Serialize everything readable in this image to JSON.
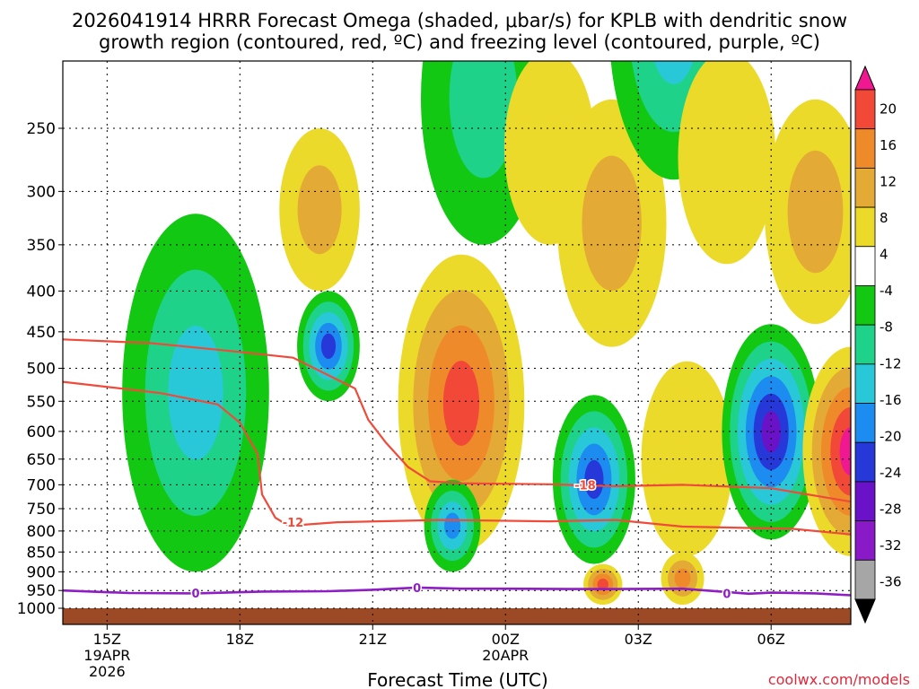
{
  "header": {
    "title_line1": "2026041914 HRRR Forecast Omega (shaded, μbar/s) for KPLB with dendritic snow",
    "title_line2": "growth region (contoured, red, ºC) and freezing level (contoured, purple, ºC)"
  },
  "footer": {
    "xlabel": "Forecast Time (UTC)",
    "credit": "coolwx.com/models"
  },
  "colors": {
    "freezing_line": "#8e1ec4",
    "dgz_line": "#f04a3a",
    "ground": "#9c4a25"
  },
  "chart_data": {
    "type": "heatmap",
    "title": "2026041914 HRRR Forecast Omega (shaded, μbar/s) for KPLB with dendritic snow growth region (contoured, red, ºC) and freezing level (contoured, purple, ºC)",
    "xlabel": "Forecast Time (UTC)",
    "ylabel": "",
    "x_ticks": [
      {
        "label": "15Z",
        "sub": [
          "19APR",
          "2026"
        ],
        "hour": 15
      },
      {
        "label": "18Z",
        "sub": [],
        "hour": 18
      },
      {
        "label": "21Z",
        "sub": [],
        "hour": 21
      },
      {
        "label": "00Z",
        "sub": [
          "20APR"
        ],
        "hour": 24
      },
      {
        "label": "03Z",
        "sub": [],
        "hour": 27
      },
      {
        "label": "06Z",
        "sub": [],
        "hour": 30
      }
    ],
    "xlim": [
      "2026-04-19 14Z",
      "2026-04-20 08Z"
    ],
    "y_ticks": [
      250,
      300,
      350,
      400,
      450,
      500,
      550,
      600,
      650,
      700,
      750,
      800,
      850,
      900,
      950,
      1000
    ],
    "y_unit": "hPa",
    "ylim": [
      1000,
      200
    ],
    "grid": true,
    "colorbar": {
      "labels": [
        "20",
        "16",
        "12",
        "8",
        "4",
        "-4",
        "-8",
        "-12",
        "-16",
        "-20",
        "-24",
        "-28",
        "-32",
        "-36"
      ],
      "bins": [
        {
          "range": "<-36",
          "color": "#000000"
        },
        {
          "range": "-36 to -32",
          "color": "#a6a6a6"
        },
        {
          "range": "-32 to -28",
          "color": "#8a19c8"
        },
        {
          "range": "-28 to -24",
          "color": "#6a12c8"
        },
        {
          "range": "-24 to -20",
          "color": "#2638d8"
        },
        {
          "range": "-20 to -16",
          "color": "#1d8cf0"
        },
        {
          "range": "-16 to -12",
          "color": "#28c8d8"
        },
        {
          "range": "-12 to -8",
          "color": "#1fd28a"
        },
        {
          "range": "-8 to -4",
          "color": "#12c812"
        },
        {
          "range": "-4 to 4",
          "color": "#ffffff"
        },
        {
          "range": "4 to 8",
          "color": "#ecda2a"
        },
        {
          "range": "8 to 12",
          "color": "#e4aa36"
        },
        {
          "range": "12 to 16",
          "color": "#ee8a2a"
        },
        {
          "range": "16 to 20",
          "color": "#f24838"
        },
        {
          "range": ">20",
          "color": "#f01890"
        }
      ]
    },
    "omega_features": [
      {
        "time_h": 17.0,
        "p_top": 320,
        "p_bot": 900,
        "peak": -14
      },
      {
        "time_h": 20.0,
        "p_top": 400,
        "p_bot": 550,
        "peak": -24
      },
      {
        "time_h": 19.8,
        "p_top": 250,
        "p_bot": 400,
        "peak": 10
      },
      {
        "time_h": 23.0,
        "p_top": 360,
        "p_bot": 850,
        "peak": 18
      },
      {
        "time_h": 23.5,
        "p_top": 150,
        "p_bot": 350,
        "peak": -12
      },
      {
        "time_h": 22.8,
        "p_top": 690,
        "p_bot": 900,
        "peak": -18
      },
      {
        "time_h": 25.0,
        "p_top": 200,
        "p_bot": 350,
        "peak": 8
      },
      {
        "time_h": 26.4,
        "p_top": 230,
        "p_bot": 470,
        "peak": 12
      },
      {
        "time_h": 27.8,
        "p_top": 120,
        "p_bot": 290,
        "peak": -14
      },
      {
        "time_h": 26.0,
        "p_top": 540,
        "p_bot": 880,
        "peak": -22
      },
      {
        "time_h": 26.2,
        "p_top": 880,
        "p_bot": 990,
        "peak": 18
      },
      {
        "time_h": 28.1,
        "p_top": 490,
        "p_bot": 860,
        "peak": 6
      },
      {
        "time_h": 28.0,
        "p_top": 850,
        "p_bot": 990,
        "peak": 16
      },
      {
        "time_h": 29.0,
        "p_top": 200,
        "p_bot": 370,
        "peak": 8
      },
      {
        "time_h": 31.0,
        "p_top": 230,
        "p_bot": 440,
        "peak": 10
      },
      {
        "time_h": 30.0,
        "p_top": 440,
        "p_bot": 820,
        "peak": -28
      },
      {
        "time_h": 31.8,
        "p_top": 470,
        "p_bot": 860,
        "peak": 24
      }
    ],
    "series": [
      {
        "name": "-12",
        "kind": "dgz_contour",
        "color": "#f04a3a",
        "points": [
          [
            14.0,
            460
          ],
          [
            16.0,
            465
          ],
          [
            18.0,
            477
          ],
          [
            19.2,
            485
          ],
          [
            20.6,
            530
          ],
          [
            20.9,
            580
          ],
          [
            21.3,
            620
          ],
          [
            21.8,
            665
          ],
          [
            22.3,
            693
          ],
          [
            23.0,
            697
          ],
          [
            25.0,
            699
          ],
          [
            26.5,
            703
          ],
          [
            28.0,
            700
          ],
          [
            30.0,
            707
          ],
          [
            31.8,
            735
          ]
        ]
      },
      {
        "name": "-12",
        "kind": "dgz_contour",
        "color": "#f04a3a",
        "points": [
          [
            14.0,
            520
          ],
          [
            16.2,
            537
          ],
          [
            17.5,
            555
          ],
          [
            18.0,
            585
          ],
          [
            18.4,
            640
          ],
          [
            18.5,
            720
          ],
          [
            18.8,
            770
          ],
          [
            19.1,
            788
          ],
          [
            20.2,
            780
          ],
          [
            22.5,
            775
          ],
          [
            25.0,
            778
          ],
          [
            26.5,
            775
          ],
          [
            28.0,
            790
          ],
          [
            30.5,
            795
          ],
          [
            31.8,
            808
          ]
        ]
      },
      {
        "name": "-18",
        "kind": "dgz_label",
        "color": "#f04a3a",
        "points": [
          [
            25.8,
            700
          ]
        ]
      },
      {
        "name": "0",
        "kind": "freezing_level",
        "color": "#8e1ec4",
        "points": [
          [
            14.0,
            950
          ],
          [
            15.5,
            957
          ],
          [
            17.0,
            958
          ],
          [
            18.5,
            953
          ],
          [
            20.0,
            952
          ],
          [
            21.0,
            948
          ],
          [
            22.0,
            942
          ],
          [
            23.0,
            945
          ],
          [
            24.0,
            945
          ],
          [
            25.5,
            946
          ],
          [
            26.5,
            946
          ],
          [
            28.0,
            945
          ],
          [
            29.5,
            959
          ],
          [
            30.0,
            956
          ],
          [
            31.0,
            958
          ],
          [
            31.8,
            963
          ]
        ]
      }
    ],
    "contour_labels": [
      {
        "text": "-12",
        "time_h": 19.2,
        "p": 780,
        "color": "#f04a3a"
      },
      {
        "text": "-18",
        "time_h": 25.8,
        "p": 700,
        "color": "#f04a3a"
      },
      {
        "text": "0",
        "time_h": 17.0,
        "p": 957,
        "color": "#8e1ec4"
      },
      {
        "text": "0",
        "time_h": 22.0,
        "p": 942,
        "color": "#8e1ec4"
      },
      {
        "text": "0",
        "time_h": 29.0,
        "p": 958,
        "color": "#8e1ec4"
      }
    ]
  }
}
